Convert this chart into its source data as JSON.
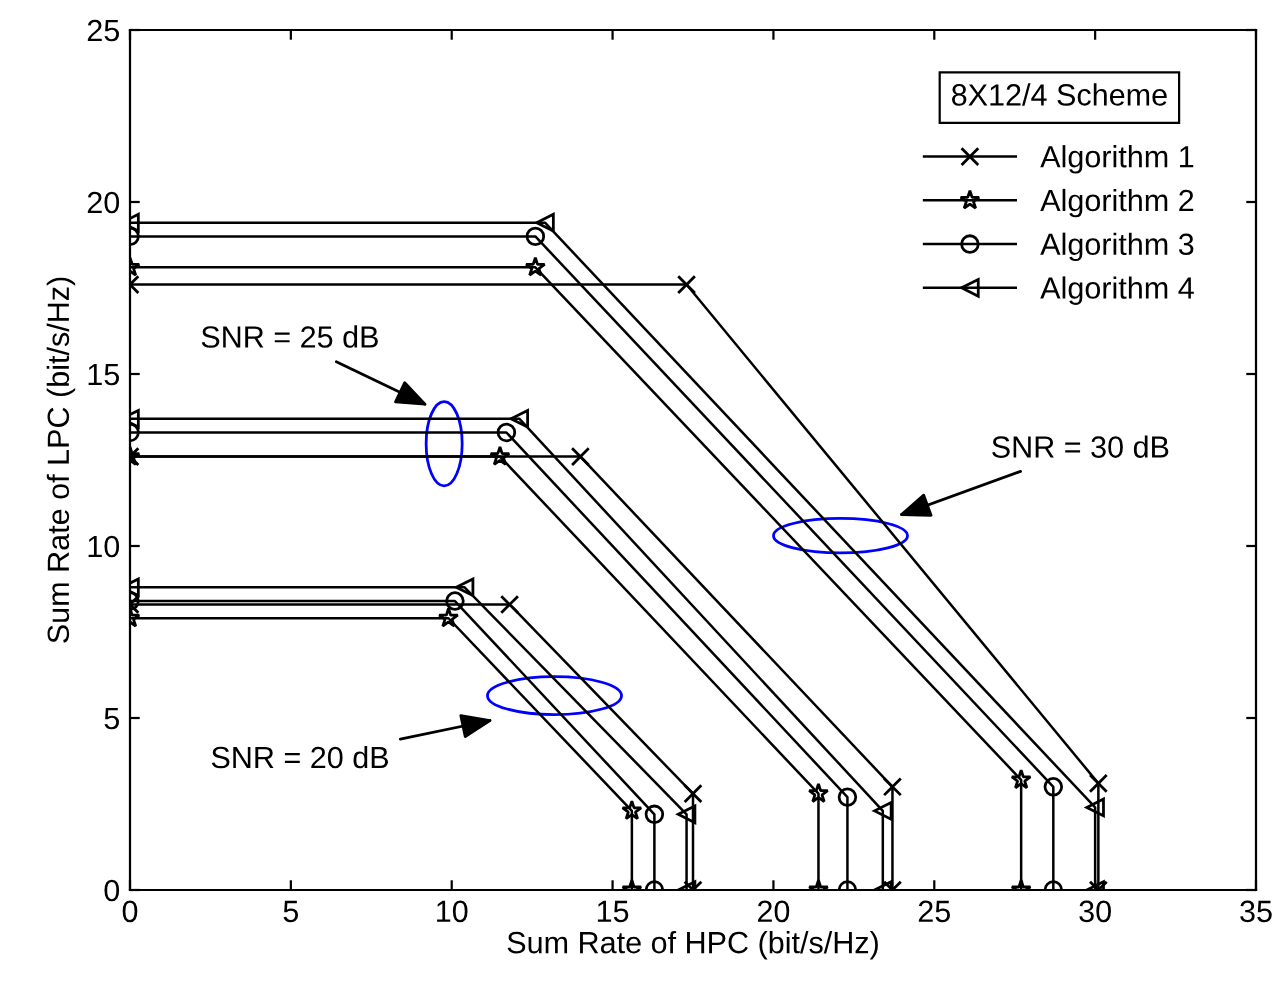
{
  "chart_data": {
    "type": "line",
    "xlabel": "Sum Rate of HPC (bit/s/Hz)",
    "ylabel": "Sum Rate of LPC (bit/s/Hz)",
    "legend_title": "8X12/4 Scheme",
    "legend": "top right",
    "grid": false,
    "line_style": "solid",
    "xlim": [
      0,
      35
    ],
    "ylim": [
      0,
      25
    ],
    "xticks": [
      0,
      5,
      10,
      15,
      20,
      25,
      30,
      35
    ],
    "yticks": [
      0,
      5,
      10,
      15,
      20,
      25
    ],
    "series": [
      {
        "name": "Algorithm 1",
        "color": "#000000",
        "marker": "cross",
        "x": [
          0,
          17.3,
          30.1,
          30.1,
          null,
          0,
          14.0,
          23.7,
          23.7,
          null,
          0,
          11.8,
          17.5,
          17.5
        ],
        "values": [
          17.6,
          17.6,
          3.1,
          0,
          null,
          12.6,
          12.6,
          3.0,
          0,
          null,
          8.3,
          8.3,
          2.8,
          0
        ]
      },
      {
        "name": "Algorithm 2",
        "color": "#000000",
        "marker": "star",
        "x": [
          0,
          12.6,
          27.7,
          27.7,
          null,
          0,
          11.5,
          21.4,
          21.4,
          null,
          0,
          9.9,
          15.6,
          15.6
        ],
        "values": [
          18.1,
          18.1,
          3.2,
          0,
          null,
          12.6,
          12.6,
          2.8,
          0,
          null,
          7.9,
          7.9,
          2.3,
          0
        ]
      },
      {
        "name": "Algorithm 3",
        "color": "#000000",
        "marker": "circle",
        "x": [
          0,
          12.6,
          28.7,
          28.7,
          null,
          0,
          11.7,
          22.3,
          22.3,
          null,
          0,
          10.1,
          16.3,
          16.3
        ],
        "values": [
          19.0,
          19.0,
          3.0,
          0,
          null,
          13.3,
          13.3,
          2.7,
          0,
          null,
          8.4,
          8.4,
          2.2,
          0
        ]
      },
      {
        "name": "Algorithm 4",
        "color": "#000000",
        "marker": "triangle",
        "x": [
          0,
          12.9,
          30.0,
          30.0,
          null,
          0,
          12.1,
          23.4,
          23.4,
          null,
          0,
          10.4,
          17.3,
          17.3
        ],
        "values": [
          19.4,
          19.4,
          2.4,
          0,
          null,
          13.7,
          13.7,
          2.3,
          0,
          null,
          8.8,
          8.8,
          2.2,
          0
        ]
      }
    ],
    "annotations": [
      "SNR = 25 dB",
      "SNR = 30 dB",
      "SNR = 20 dB"
    ]
  }
}
